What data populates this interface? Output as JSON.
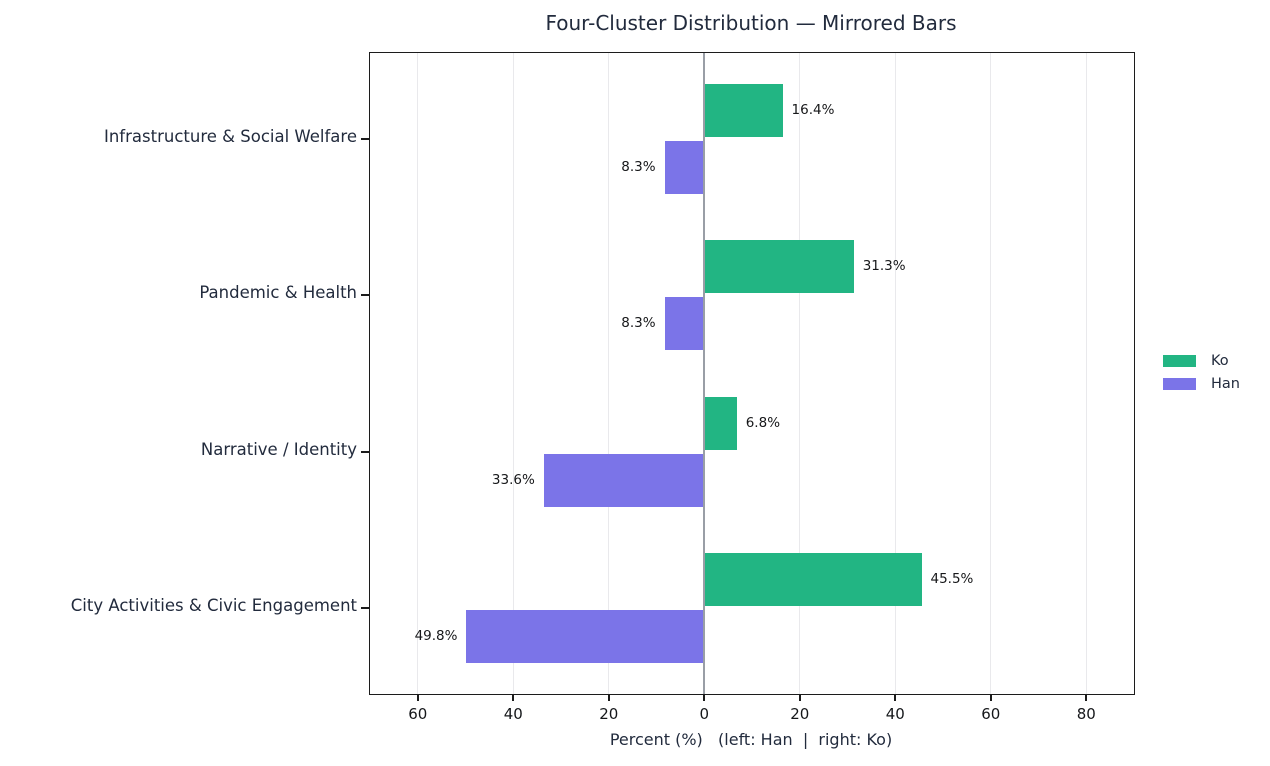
{
  "title": "Four-Cluster Distribution — Mirrored Bars",
  "chart_data": {
    "type": "bar",
    "subtype": "mirrored-horizontal",
    "title": "Four-Cluster Distribution — Mirrored Bars",
    "categories": [
      "Infrastructure & Social Welfare",
      "Pandemic & Health",
      "Narrative / Identity",
      "City Activities & Civic Engagement"
    ],
    "series": [
      {
        "name": "Ko",
        "side": "right",
        "color": "#22b583",
        "values": [
          16.4,
          31.3,
          6.8,
          45.5
        ]
      },
      {
        "name": "Han",
        "side": "left",
        "color": "#7b74e8",
        "values": [
          8.3,
          8.3,
          33.6,
          49.8
        ]
      }
    ],
    "value_suffix": "%",
    "xlabel": "Percent (%)   (left: Han  |  right: Ko)",
    "xlim": [
      -70,
      90
    ],
    "x_ticks": [
      -60,
      -40,
      -20,
      0,
      20,
      40,
      60,
      80
    ],
    "x_tick_labels": [
      "60",
      "40",
      "20",
      "0",
      "20",
      "40",
      "60",
      "80"
    ],
    "grid": true,
    "grid_color": "#e9e9ec",
    "zero_line_color": "#999ea6",
    "legend_position": "right-outside",
    "legend": [
      "Ko",
      "Han"
    ]
  }
}
